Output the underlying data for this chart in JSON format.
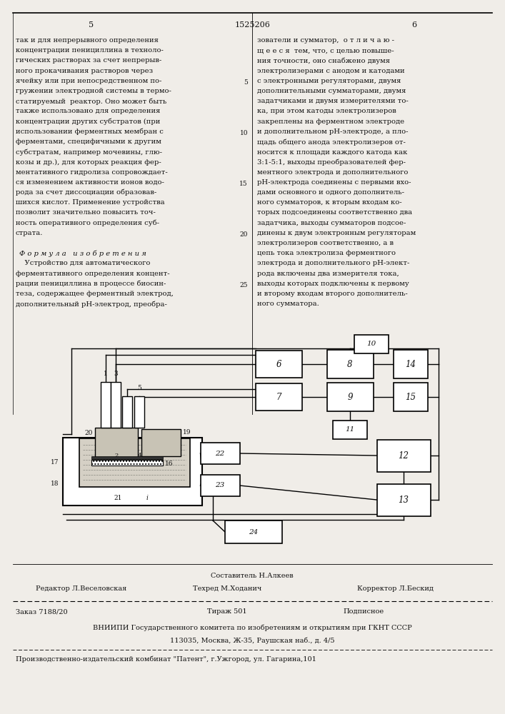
{
  "page_number_center": "1525206",
  "page_number_left": "5",
  "page_number_right": "6",
  "background_color": "#f0ede8",
  "text_color": "#111111",
  "left_column_text": [
    "так и для непрерывного определения",
    "концентрации пенициллина в техноло-",
    "гических растворах за счет непрерыв-",
    "ного прокачивания растворов через",
    "ячейку или при непосредственном по-",
    "гружении электродной системы в термо-",
    "статируемый  реактор. Оно может быть",
    "также использовано для определения",
    "концентрации других субстратов (при",
    "использовании ферментных мембран с",
    "ферментами, специфичными к другим",
    "субстратам, например мочевины, глю-",
    "козы и др.), для которых реакция фер-",
    "ментативного гидролиза сопровождает-",
    "ся изменением активности ионов водо-",
    "рода за счет диссоциации образовав-",
    "шихся кислот. Применение устройства",
    "позволит значительно повысить точ-",
    "ность оперативного определения суб-",
    "страта.",
    "",
    "Формула  изобретения",
    "    Устройство для автоматического",
    "ферментативного определения концент-",
    "рации пенициллина в процессе биосин-",
    "теза, содержащее ферментный электрод,",
    "дополнительный pH-электрод, преобра-"
  ],
  "right_column_text": [
    "зователи и сумматор,  о т л и ч а ю -",
    "щ е е с я  тем, что, с целью повыше-",
    "ния точности, оно снабжено двумя",
    "электролизерами с анодом и катодами",
    "с электронными регуляторами, двумя",
    "дополнительными сумматорами, двумя",
    "задатчиками и двумя измерителями то-",
    "ка, при этом катоды электролизеров",
    "закреплены на ферментном электроде",
    "и дополнительном pH-электроде, а пло-",
    "щадь общего анода электролизеров от-",
    "носится к площади каждого катода как",
    "3:1-5:1, выходы преобразователей фер-",
    "ментного электрода и дополнительного",
    "pH-электрода соединены с первыми вхо-",
    "дами основного и одного дополнитель-",
    "ного сумматоров, к вторым входам ко-",
    "торых подсоединены соответственно два",
    "задатчика, выходы сумматоров подсое-",
    "динены к двум электронным регуляторам",
    "электролизеров соответственно, а в",
    "цепь тока электролиза ферментного",
    "электрода и дополнительного pH-элект-",
    "рода включены два измерителя тока,",
    "выходы которых подключены к первому",
    "и второму входам второго дополнитель-",
    "ного сумматора."
  ],
  "line_numbers": [
    5,
    10,
    15,
    20,
    25
  ],
  "footer_compositor": "Составитель Н.Алкеев",
  "footer_editor": "Редактор Л.Веселовская",
  "footer_techred": "Техред М.Ходанич",
  "footer_corrector": "Корректор Л.Бескид",
  "footer_order": "Заказ 7188/20",
  "footer_tirazh": "Тираж 501",
  "footer_podpisnoe": "Подписное",
  "footer_vniiipi": "ВНИИПИ Государственного комитета по изобретениям и открытиям при ГКНТ СССР",
  "footer_address": "113035, Москва, Ж-35, Раушская наб., д. 4/5",
  "footer_publisher": "Производственно-издательский комбинат \"Патент\", г.Ужгород, ул. Гагарина,101"
}
